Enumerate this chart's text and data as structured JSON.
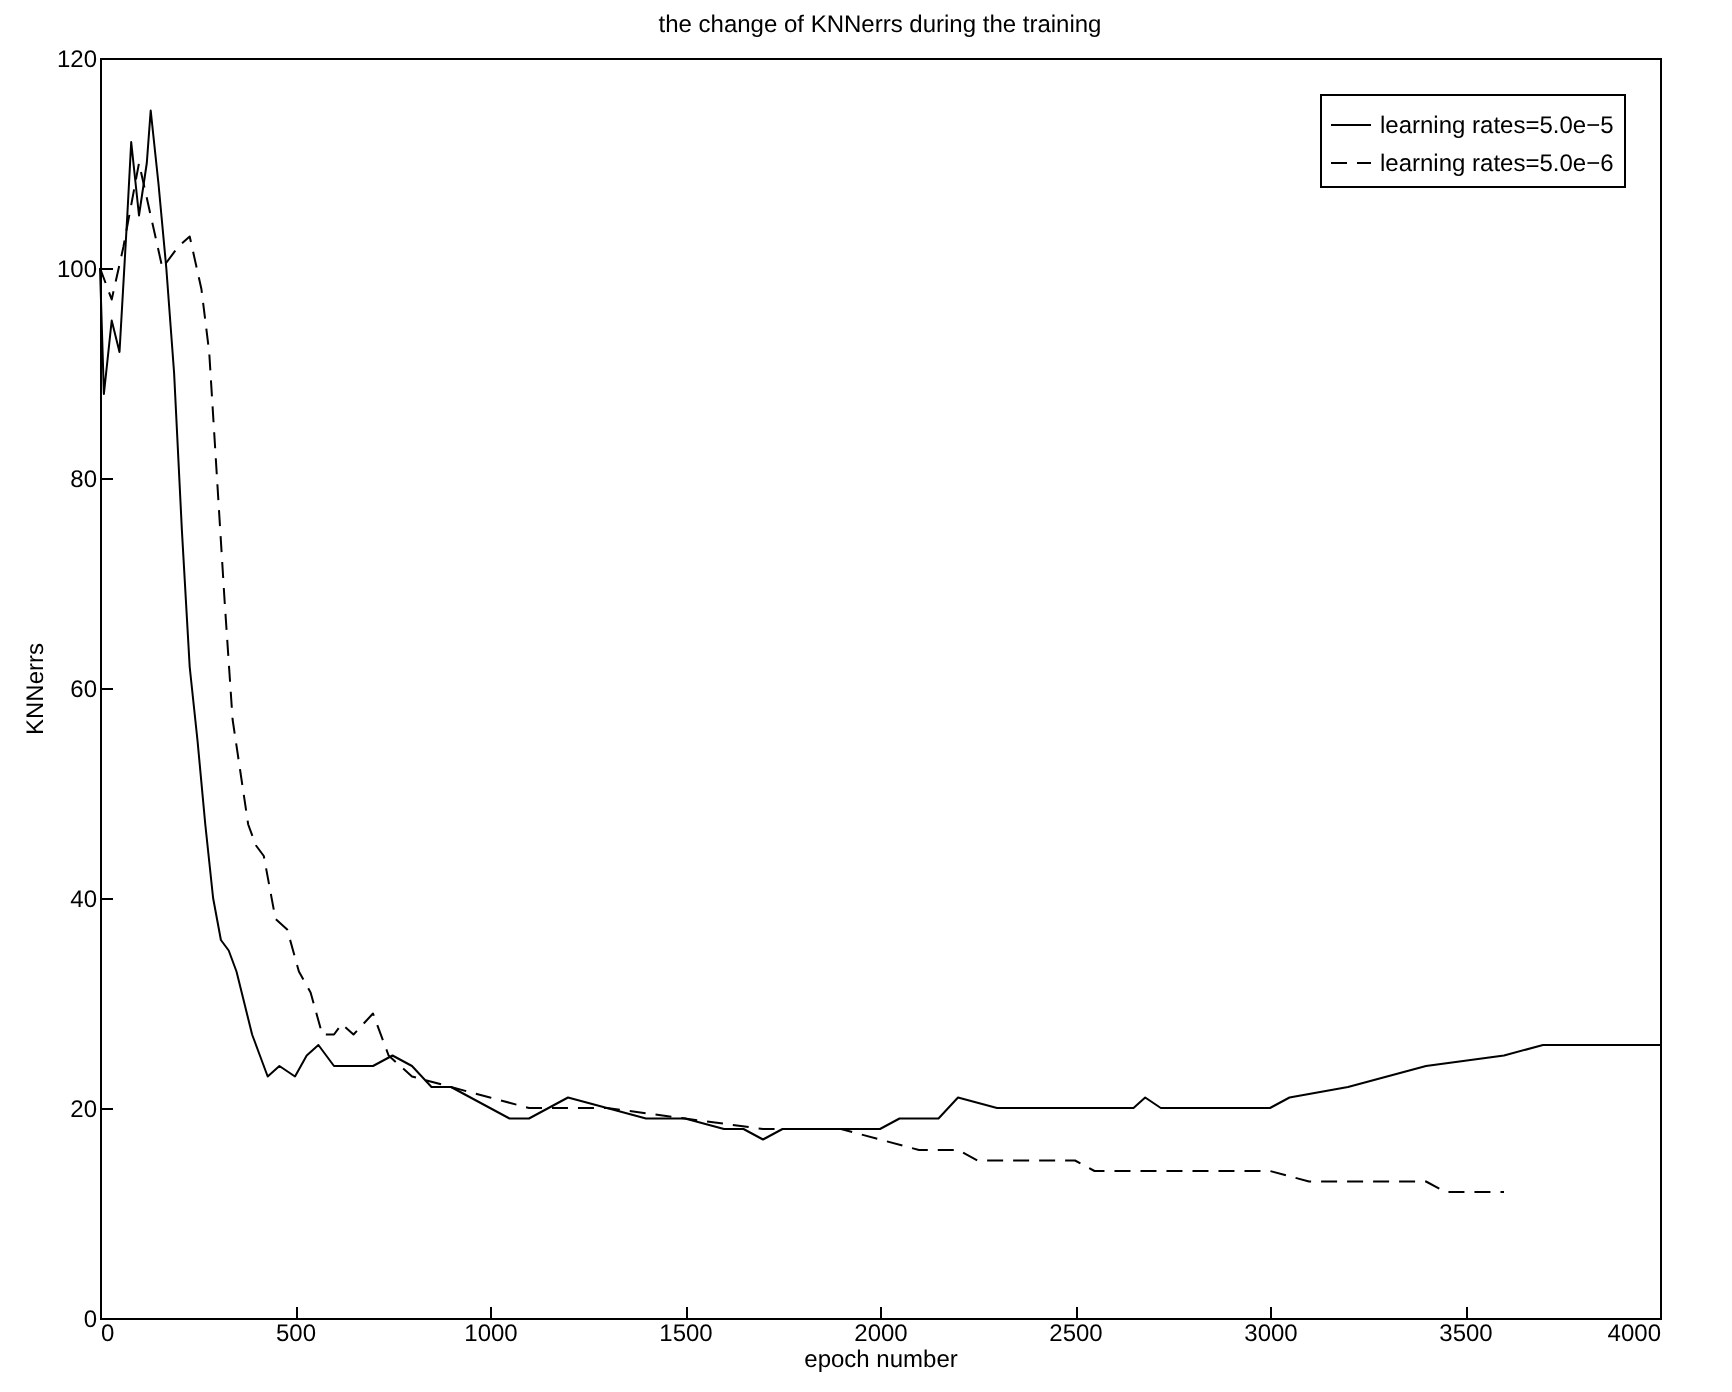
{
  "chart_data": {
    "type": "line",
    "title": "the change of KNNerrs during the training",
    "xlabel": "epoch number",
    "ylabel": "KNNerrs",
    "xlim": [
      0,
      4000
    ],
    "ylim": [
      0,
      120
    ],
    "xticks": [
      0,
      500,
      1000,
      1500,
      2000,
      2500,
      3000,
      3500,
      4000
    ],
    "yticks": [
      0,
      20,
      40,
      60,
      80,
      100,
      120
    ],
    "grid": false,
    "legend": "top right",
    "marker": "none",
    "series": [
      {
        "name": "learning rates=5.0e−5",
        "color": "#000000",
        "line_style": "solid",
        "x": [
          0,
          10,
          30,
          50,
          70,
          80,
          100,
          120,
          130,
          150,
          170,
          190,
          210,
          230,
          250,
          270,
          290,
          310,
          330,
          350,
          370,
          390,
          410,
          430,
          460,
          500,
          530,
          560,
          600,
          700,
          750,
          800,
          850,
          900,
          950,
          1000,
          1050,
          1100,
          1150,
          1200,
          1300,
          1400,
          1500,
          1600,
          1650,
          1700,
          1750,
          1800,
          1900,
          2000,
          2050,
          2150,
          2200,
          2300,
          2500,
          2650,
          2680,
          2720,
          3000,
          3050,
          3200,
          3300,
          3400,
          3600,
          3700,
          4000
        ],
        "values": [
          100,
          88,
          95,
          92,
          105,
          112,
          105,
          110,
          115,
          108,
          100,
          90,
          75,
          62,
          55,
          47,
          40,
          36,
          35,
          33,
          30,
          27,
          25,
          23,
          24,
          23,
          25,
          26,
          24,
          24,
          25,
          24,
          22,
          22,
          21,
          20,
          19,
          19,
          20,
          21,
          20,
          19,
          19,
          18,
          18,
          17,
          18,
          18,
          18,
          18,
          19,
          19,
          21,
          20,
          20,
          20,
          21,
          20,
          20,
          21,
          22,
          23,
          24,
          25,
          26,
          26
        ]
      },
      {
        "name": "learning rates=5.0e−6",
        "color": "#000000",
        "line_style": "dashed",
        "x": [
          0,
          30,
          60,
          100,
          130,
          160,
          200,
          230,
          260,
          280,
          300,
          320,
          340,
          360,
          380,
          400,
          420,
          450,
          480,
          510,
          540,
          570,
          600,
          620,
          650,
          700,
          740,
          800,
          900,
          1000,
          1100,
          1200,
          1300,
          1500,
          1700,
          1900,
          2000,
          2100,
          2200,
          2250,
          2500,
          2550,
          3000,
          3100,
          3400,
          3450,
          3600
        ],
        "values": [
          100,
          97,
          102,
          110,
          105,
          100,
          102,
          103,
          98,
          92,
          80,
          68,
          57,
          52,
          47,
          45,
          44,
          38,
          37,
          33,
          31,
          27,
          27,
          28,
          27,
          29,
          25,
          23,
          22,
          21,
          20,
          20,
          20,
          19,
          18,
          18,
          17,
          16,
          16,
          15,
          15,
          14,
          14,
          13,
          13,
          12,
          12
        ]
      }
    ]
  }
}
